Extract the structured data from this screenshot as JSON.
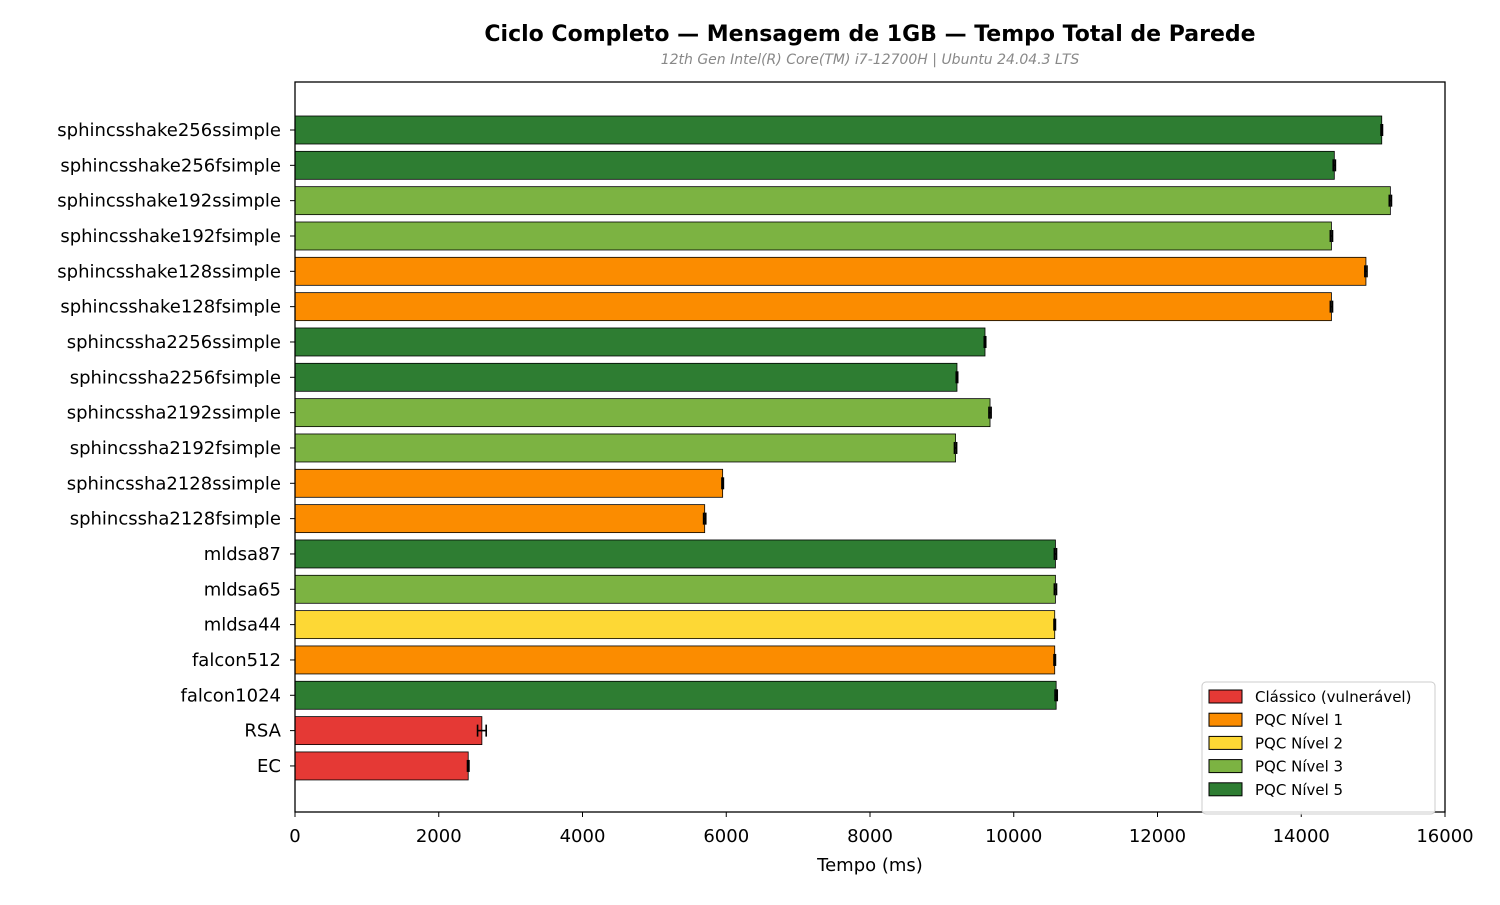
{
  "chart_data": {
    "type": "bar",
    "orientation": "horizontal",
    "title": "Ciclo Completo — Mensagem de 1GB — Tempo Total de Parede",
    "subtitle": "12th Gen Intel(R) Core(TM) i7-12700H | Ubuntu 24.04.3 LTS",
    "xlabel": "Tempo (ms)",
    "ylabel": "",
    "xlim": [
      0,
      16000
    ],
    "xticks": [
      0,
      2000,
      4000,
      6000,
      8000,
      10000,
      12000,
      14000,
      16000
    ],
    "grid": false,
    "legend_position": "lower-right",
    "categories": [
      {
        "label": "Clássico (vulnerável)",
        "color": "#e53935"
      },
      {
        "label": "PQC Nível 1",
        "color": "#fb8c00"
      },
      {
        "label": "PQC Nível 2",
        "color": "#fdd835"
      },
      {
        "label": "PQC Nível 3",
        "color": "#7cb342"
      },
      {
        "label": "PQC Nível 5",
        "color": "#2e7d32"
      }
    ],
    "bars": [
      {
        "label": "sphincsshake256ssimple",
        "value": 15120,
        "error": 10,
        "category": 4
      },
      {
        "label": "sphincsshake256fsimple",
        "value": 14460,
        "error": 15,
        "category": 4
      },
      {
        "label": "sphincsshake192ssimple",
        "value": 15240,
        "error": 15,
        "category": 3
      },
      {
        "label": "sphincsshake192fsimple",
        "value": 14420,
        "error": 15,
        "category": 3
      },
      {
        "label": "sphincsshake128ssimple",
        "value": 14900,
        "error": 15,
        "category": 1
      },
      {
        "label": "sphincsshake128fsimple",
        "value": 14420,
        "error": 15,
        "category": 1
      },
      {
        "label": "sphincssha2256ssimple",
        "value": 9600,
        "error": 10,
        "category": 4
      },
      {
        "label": "sphincssha2256fsimple",
        "value": 9210,
        "error": 10,
        "category": 4
      },
      {
        "label": "sphincssha2192ssimple",
        "value": 9670,
        "error": 15,
        "category": 3
      },
      {
        "label": "sphincssha2192fsimple",
        "value": 9190,
        "error": 15,
        "category": 3
      },
      {
        "label": "sphincssha2128ssimple",
        "value": 5950,
        "error": 10,
        "category": 1
      },
      {
        "label": "sphincssha2128fsimple",
        "value": 5700,
        "error": 15,
        "category": 1
      },
      {
        "label": "mldsa87",
        "value": 10580,
        "error": 15,
        "category": 4
      },
      {
        "label": "mldsa65",
        "value": 10580,
        "error": 15,
        "category": 3
      },
      {
        "label": "mldsa44",
        "value": 10570,
        "error": 10,
        "category": 2
      },
      {
        "label": "falcon512",
        "value": 10570,
        "error": 10,
        "category": 1
      },
      {
        "label": "falcon1024",
        "value": 10590,
        "error": 15,
        "category": 4
      },
      {
        "label": "RSA",
        "value": 2600,
        "error": 60,
        "category": 0
      },
      {
        "label": "EC",
        "value": 2410,
        "error": 10,
        "category": 0
      }
    ]
  }
}
